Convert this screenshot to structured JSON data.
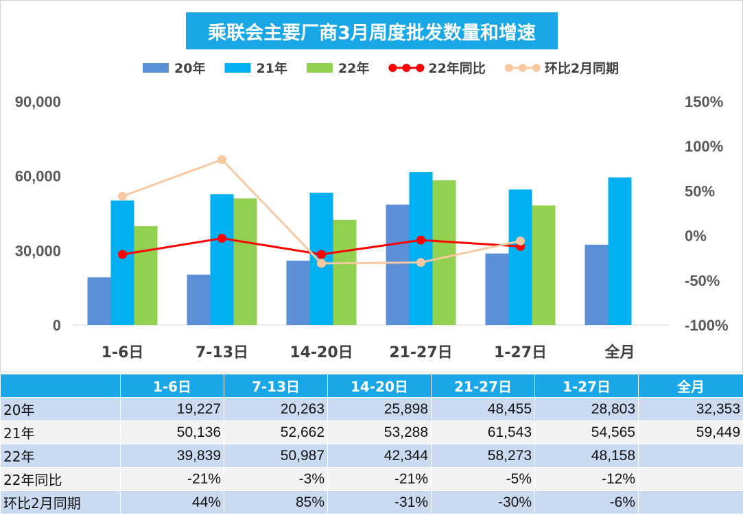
{
  "chart_data": {
    "type": "bar",
    "title": "乘联会主要厂商3月周度批发数量和增速",
    "categories": [
      "1-6日",
      "7-13日",
      "14-20日",
      "21-27日",
      "1-27日",
      "全月"
    ],
    "series": [
      {
        "name": "20年",
        "kind": "bar",
        "color": "#5b8fd6",
        "values": [
          19227,
          20263,
          25898,
          48455,
          28803,
          32353
        ]
      },
      {
        "name": "21年",
        "kind": "bar",
        "color": "#00b0f0",
        "values": [
          50136,
          52662,
          53288,
          61543,
          54565,
          59449
        ]
      },
      {
        "name": "22年",
        "kind": "bar",
        "color": "#92d050",
        "values": [
          39839,
          50987,
          42344,
          58273,
          48158,
          null
        ]
      },
      {
        "name": "22年同比",
        "kind": "line",
        "axis": "right",
        "color": "#ff0000",
        "values": [
          -21,
          -3,
          -21,
          -5,
          -12,
          null
        ]
      },
      {
        "name": "环比2月同期",
        "kind": "line",
        "axis": "right",
        "color": "#f8c9a0",
        "values": [
          44,
          85,
          -31,
          -30,
          -6,
          null
        ]
      }
    ],
    "left_axis": {
      "ticks": [
        "0",
        "30,000",
        "60,000",
        "90,000"
      ],
      "range": [
        0,
        90000
      ]
    },
    "right_axis": {
      "ticks": [
        "-100%",
        "-50%",
        "0%",
        "50%",
        "100%",
        "150%"
      ],
      "range": [
        -100,
        150
      ]
    },
    "legend_position": "top"
  },
  "table": {
    "headers": [
      "",
      "1-6日",
      "7-13日",
      "14-20日",
      "21-27日",
      "1-27日",
      "全月"
    ],
    "rows": [
      {
        "label": "20年",
        "cells": [
          "19,227",
          "20,263",
          "25,898",
          "48,455",
          "28,803",
          "32,353"
        ]
      },
      {
        "label": "21年",
        "cells": [
          "50,136",
          "52,662",
          "53,288",
          "61,543",
          "54,565",
          "59,449"
        ]
      },
      {
        "label": "22年",
        "cells": [
          "39,839",
          "50,987",
          "42,344",
          "58,273",
          "48,158",
          ""
        ]
      },
      {
        "label": "22年同比",
        "cells": [
          "-21%",
          "-3%",
          "-21%",
          "-5%",
          "-12%",
          ""
        ]
      },
      {
        "label": "环比2月同期",
        "cells": [
          "44%",
          "85%",
          "-31%",
          "-30%",
          "-6%",
          ""
        ]
      }
    ]
  }
}
